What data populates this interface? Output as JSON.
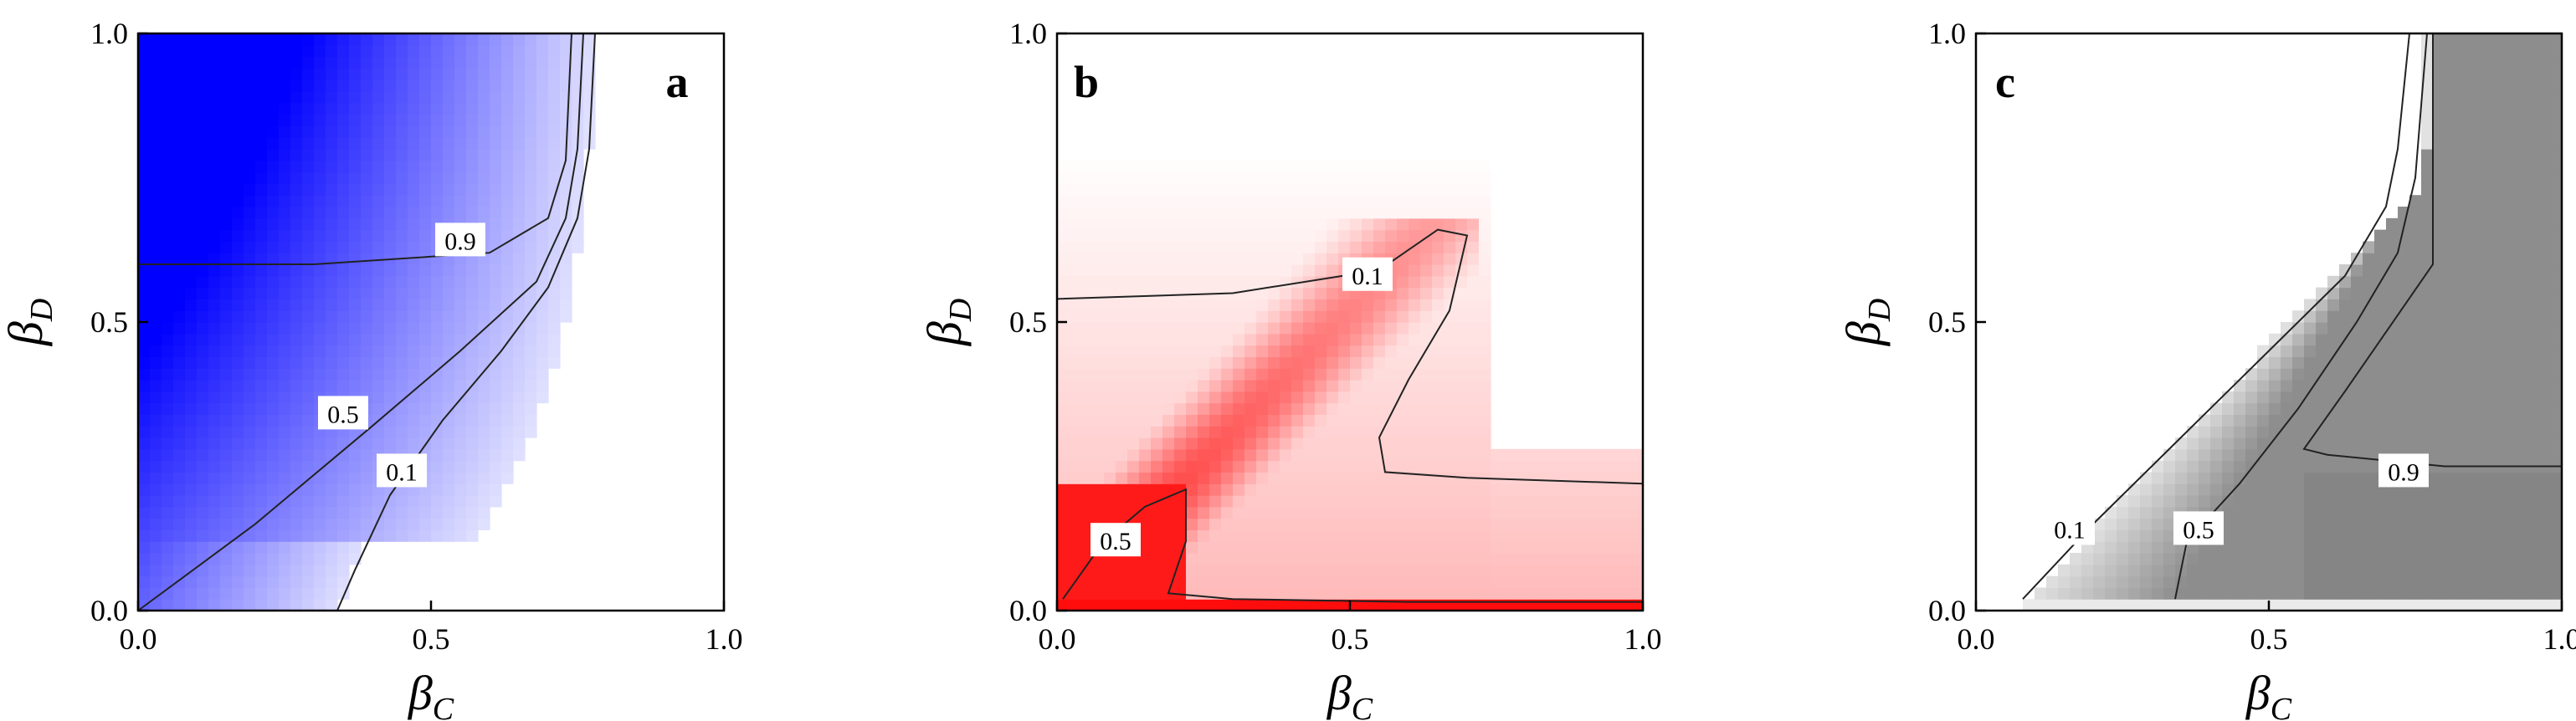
{
  "colors": {
    "a": "#0000ff",
    "b": "#ff0000",
    "c": "#707070"
  },
  "chart_data": [
    {
      "type": "heatmap",
      "panel": "a",
      "xlabel": "β",
      "xlabel_sub": "C",
      "ylabel": "β",
      "ylabel_sub": "D",
      "xlim": [
        0,
        1
      ],
      "ylim": [
        0,
        1
      ],
      "xticks": [
        "0.0",
        "0.5",
        "1.0"
      ],
      "yticks": [
        "0.0",
        "0.5",
        "1.0"
      ],
      "contours": [
        {
          "level": "0.9",
          "label_at": [
            0.55,
            0.64
          ],
          "points": [
            [
              0.0,
              0.6
            ],
            [
              0.3,
              0.6
            ],
            [
              0.6,
              0.62
            ],
            [
              0.7,
              0.68
            ],
            [
              0.73,
              0.78
            ],
            [
              0.74,
              1.0
            ]
          ]
        },
        {
          "level": "0.5",
          "label_at": [
            0.35,
            0.34
          ],
          "points": [
            [
              0.0,
              0.0
            ],
            [
              0.2,
              0.15
            ],
            [
              0.4,
              0.32
            ],
            [
              0.55,
              0.45
            ],
            [
              0.68,
              0.57
            ],
            [
              0.73,
              0.68
            ],
            [
              0.75,
              0.8
            ],
            [
              0.76,
              1.0
            ]
          ]
        },
        {
          "level": "0.1",
          "label_at": [
            0.45,
            0.24
          ],
          "points": [
            [
              0.05,
              0.0
            ],
            [
              0.34,
              0.0
            ],
            [
              0.37,
              0.07
            ],
            [
              0.43,
              0.2
            ],
            [
              0.52,
              0.33
            ],
            [
              0.62,
              0.45
            ],
            [
              0.7,
              0.56
            ],
            [
              0.75,
              0.68
            ],
            [
              0.77,
              0.8
            ],
            [
              0.78,
              1.0
            ]
          ]
        }
      ]
    },
    {
      "type": "heatmap",
      "panel": "b",
      "xlabel": "β",
      "xlabel_sub": "C",
      "ylabel": "β",
      "ylabel_sub": "D",
      "xlim": [
        0,
        1
      ],
      "ylim": [
        0,
        1
      ],
      "xticks": [
        "0.0",
        "0.5",
        "1.0"
      ],
      "yticks": [
        "0.0",
        "0.5",
        "1.0"
      ],
      "contours": [
        {
          "level": "0.1",
          "label_at": [
            0.53,
            0.58
          ],
          "points": [
            [
              0.0,
              0.54
            ],
            [
              0.3,
              0.55
            ],
            [
              0.55,
              0.59
            ],
            [
              0.65,
              0.66
            ],
            [
              0.7,
              0.65
            ],
            [
              0.67,
              0.52
            ],
            [
              0.6,
              0.4
            ],
            [
              0.55,
              0.3
            ],
            [
              0.56,
              0.24
            ],
            [
              0.7,
              0.23
            ],
            [
              1.0,
              0.22
            ]
          ]
        },
        {
          "level": "0.5",
          "label_at": [
            0.1,
            0.12
          ],
          "points": [
            [
              0.01,
              0.02
            ],
            [
              0.08,
              0.12
            ],
            [
              0.15,
              0.18
            ],
            [
              0.22,
              0.21
            ],
            [
              0.22,
              0.12
            ],
            [
              0.19,
              0.03
            ],
            [
              0.3,
              0.02
            ],
            [
              0.6,
              0.015
            ],
            [
              1.0,
              0.015
            ]
          ]
        }
      ]
    },
    {
      "type": "heatmap",
      "panel": "c",
      "xlabel": "β",
      "xlabel_sub": "C",
      "ylabel": "β",
      "ylabel_sub": "D",
      "xlim": [
        0,
        1
      ],
      "ylim": [
        0,
        1
      ],
      "xticks": [
        "0.0",
        "0.5",
        "1.0"
      ],
      "yticks": [
        "0.0",
        "0.5",
        "1.0"
      ],
      "contours": [
        {
          "level": "0.1",
          "label_at": [
            0.16,
            0.14
          ],
          "points": [
            [
              0.08,
              0.02
            ],
            [
              0.2,
              0.15
            ],
            [
              0.35,
              0.3
            ],
            [
              0.5,
              0.45
            ],
            [
              0.63,
              0.58
            ],
            [
              0.7,
              0.7
            ],
            [
              0.72,
              0.8
            ],
            [
              0.74,
              1.0
            ]
          ]
        },
        {
          "level": "0.5",
          "label_at": [
            0.38,
            0.14
          ],
          "points": [
            [
              0.34,
              0.02
            ],
            [
              0.36,
              0.12
            ],
            [
              0.45,
              0.22
            ],
            [
              0.55,
              0.35
            ],
            [
              0.65,
              0.5
            ],
            [
              0.72,
              0.62
            ],
            [
              0.75,
              0.75
            ],
            [
              0.77,
              1.0
            ]
          ]
        },
        {
          "level": "0.9",
          "label_at": [
            0.73,
            0.24
          ],
          "points": [
            [
              0.78,
              1.0
            ],
            [
              0.78,
              0.6
            ],
            [
              0.63,
              0.38
            ],
            [
              0.56,
              0.28
            ],
            [
              0.6,
              0.27
            ],
            [
              0.8,
              0.25
            ],
            [
              1.0,
              0.25
            ]
          ]
        }
      ]
    }
  ]
}
